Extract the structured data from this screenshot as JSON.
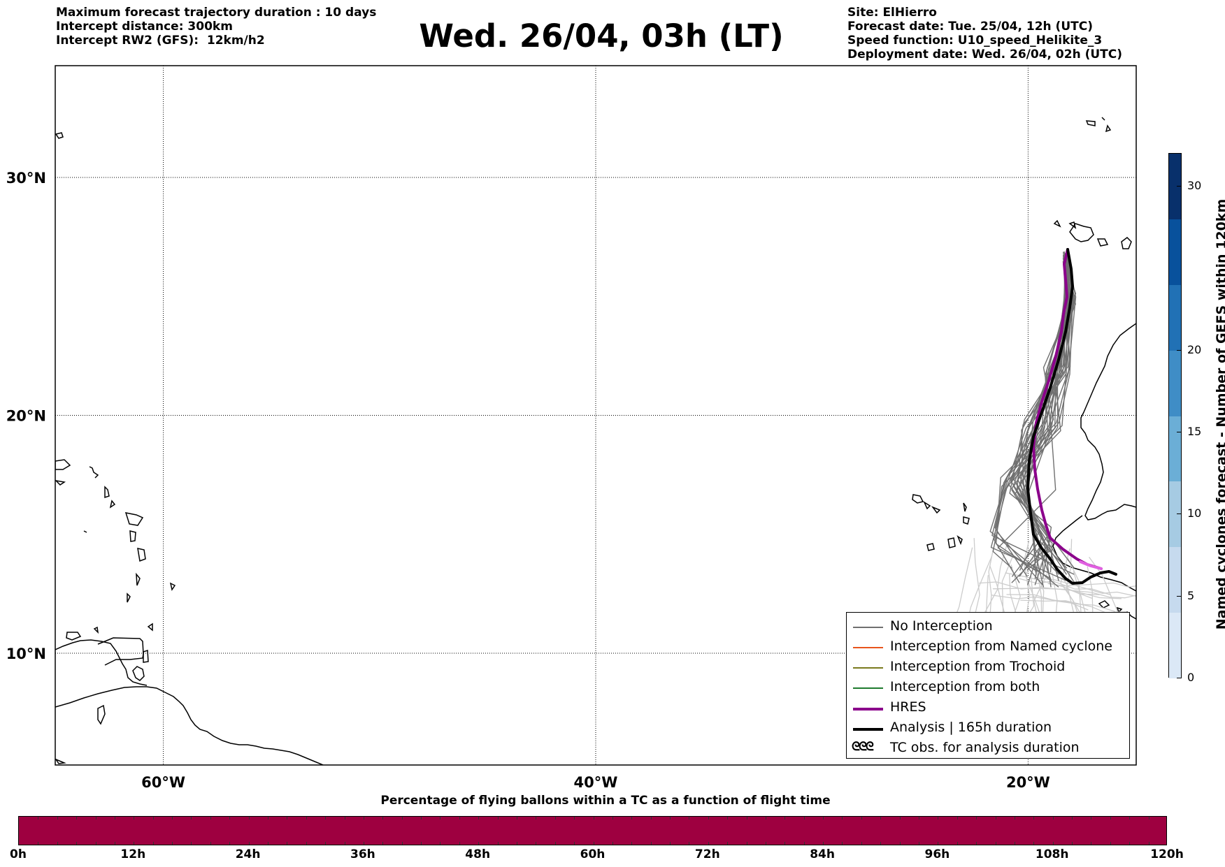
{
  "header": {
    "left_lines": [
      "Maximum forecast trajectory duration : 10 days",
      "Intercept distance: 300km",
      "Intercept RW2 (GFS):  12km/h2"
    ],
    "title": "Wed. 26/04, 03h (LT)",
    "right_lines": [
      "Site: ElHierro",
      "Forecast date: Tue. 25/04, 12h (UTC)",
      "Speed function: U10_speed_Helikite_3",
      "Deployment date: Wed. 26/04, 02h (UTC)"
    ]
  },
  "map": {
    "lon_range": [
      -65,
      -15
    ],
    "lat_range": [
      5.3,
      34.7
    ],
    "lon_ticks": [
      {
        "lon": -60,
        "label": "60°W"
      },
      {
        "lon": -40,
        "label": "40°W"
      },
      {
        "lon": -20,
        "label": "20°W"
      }
    ],
    "lat_ticks": [
      {
        "lat": 30,
        "label": "30°N"
      },
      {
        "lat": 20,
        "label": "20°N"
      },
      {
        "lat": 10,
        "label": "10°N"
      }
    ],
    "grid": "dotted",
    "colors": {
      "no_interception": "#707070",
      "faded_track": "#cccccc",
      "hres": "#8b008b",
      "hres_end": "#e060e0",
      "analysis": "#000000"
    }
  },
  "legend": {
    "placement": "lower-right",
    "items": [
      {
        "label": "No Interception",
        "color": "#707070",
        "style": "thin"
      },
      {
        "label": "Interception from Named cyclone",
        "color": "#e8541c",
        "style": "thin"
      },
      {
        "label": "Interception from Trochoid",
        "color": "#7a7a1e",
        "style": "thin"
      },
      {
        "label": "Interception from both",
        "color": "#1e7a2e",
        "style": "thin"
      },
      {
        "label": "HRES",
        "color": "#8b008b",
        "style": "thick"
      },
      {
        "label": "Analysis | 165h duration",
        "color": "#000000",
        "style": "thick"
      },
      {
        "label": "TC obs. for analysis duration",
        "color": "#000000",
        "style": "glyph",
        "glyph": "ᘓᘓᘓ"
      }
    ]
  },
  "colorbar_right": {
    "label": "Named cyclones forecast - Number of GEFS within 120km",
    "min": 0,
    "max": 32,
    "ticks": [
      "0",
      "5",
      "10",
      "15",
      "20",
      "30"
    ],
    "tick_values": [
      0,
      5,
      10,
      15,
      20,
      30
    ],
    "colors": [
      "#dbe8f6",
      "#c6daee",
      "#a6cbe3",
      "#6baed6",
      "#3f8dc6",
      "#2171b5",
      "#08519c",
      "#08306b"
    ]
  },
  "colorbar_bottom": {
    "title": "Percentage of flying ballons within a TC as a function of flight time",
    "ticks": [
      "0h",
      "12h",
      "24h",
      "36h",
      "48h",
      "60h",
      "72h",
      "84h",
      "96h",
      "108h",
      "120h"
    ],
    "max_hours": 120,
    "fill_color": "#9e0040"
  }
}
